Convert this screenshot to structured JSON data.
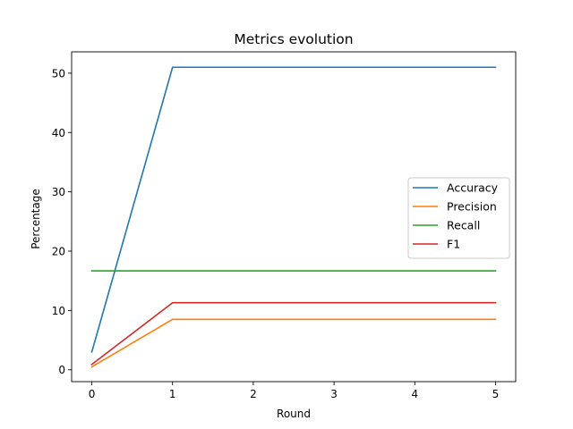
{
  "chart_data": {
    "type": "line",
    "title": "Metrics evolution",
    "xlabel": "Round",
    "ylabel": "Percentage",
    "x": [
      0,
      1,
      2,
      3,
      4,
      5
    ],
    "xlim": [
      -0.25,
      5.25
    ],
    "ylim": [
      -2.0,
      53.6
    ],
    "xticks": [
      0,
      1,
      2,
      3,
      4,
      5
    ],
    "yticks": [
      0,
      10,
      20,
      30,
      40,
      50
    ],
    "grid": false,
    "legend_position": "center-right",
    "series": [
      {
        "name": "Accuracy",
        "color": "#1f77b4",
        "values": [
          3.0,
          51.0,
          51.0,
          51.0,
          51.0,
          51.0
        ]
      },
      {
        "name": "Precision",
        "color": "#ff7f0e",
        "values": [
          0.5,
          8.5,
          8.5,
          8.5,
          8.5,
          8.5
        ]
      },
      {
        "name": "Recall",
        "color": "#2ca02c",
        "values": [
          16.67,
          16.67,
          16.67,
          16.67,
          16.67,
          16.67
        ]
      },
      {
        "name": "F1",
        "color": "#d62728",
        "values": [
          0.9,
          11.3,
          11.3,
          11.3,
          11.3,
          11.3
        ]
      }
    ]
  }
}
